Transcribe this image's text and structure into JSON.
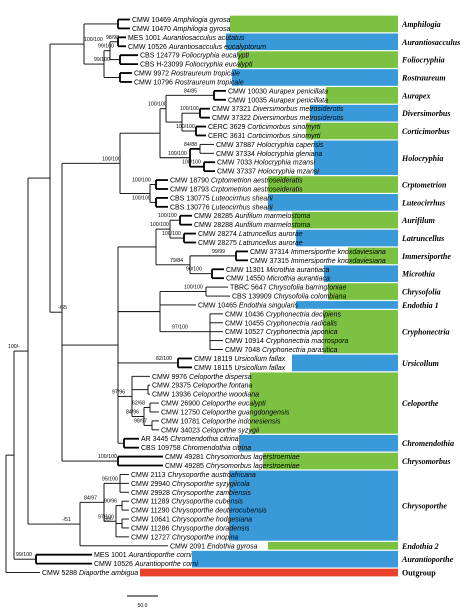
{
  "colors": {
    "green": "#7cc142",
    "blue": "#3a9ad9",
    "red": "#e8412c"
  },
  "taxa": [
    {
      "acc": "CMW 10469",
      "name": "Amphilogia gyrosa"
    },
    {
      "acc": "CMW 10470",
      "name": "Amphilogia gyrosa"
    },
    {
      "acc": "MES 1001",
      "name": "Aurantiosacculus acutatus"
    },
    {
      "acc": "CMW 10526",
      "name": "Aurantiosacculus eucalyptorum"
    },
    {
      "acc": "CBS 124779",
      "name": "Foliocryphia eucalypti"
    },
    {
      "acc": "CBS H-23099",
      "name": "Foliocryphia eucalypti"
    },
    {
      "acc": "CMW 9972",
      "name": "Rostraureum tropicale"
    },
    {
      "acc": "CMW 10796",
      "name": "Rostraureum tropicale"
    },
    {
      "acc": "CMW 10030",
      "name": "Aurapex penicillata"
    },
    {
      "acc": "CMW 10035",
      "name": "Aurapex penicillata"
    },
    {
      "acc": "CMW 37321",
      "name": "Diversimorbus metrosiderotis"
    },
    {
      "acc": "CMW 37322",
      "name": "Diversimorbus metrosiderotis"
    },
    {
      "acc": "CERC 3629",
      "name": "Corticimorbus sinomyrti"
    },
    {
      "acc": "CERC 3631",
      "name": "Corticimorbus sinomyrti"
    },
    {
      "acc": "CMW 37887",
      "name": "Holocryphia capensis"
    },
    {
      "acc": "CMW 37334",
      "name": "Holocryphia gleniana"
    },
    {
      "acc": "CMW 7033",
      "name": "Holocryphia mzansi"
    },
    {
      "acc": "CMW 37337",
      "name": "Holocryphia mzansi"
    },
    {
      "acc": "CMW 18790",
      "name": "Crptometrion aestroseideratis"
    },
    {
      "acc": "CMW 18793",
      "name": "Crptometrion aestroseideratis"
    },
    {
      "acc": "CBS 130775",
      "name": "Luteocirrhus shearii"
    },
    {
      "acc": "CBS 130776",
      "name": "Luteocirrhus shearii"
    },
    {
      "acc": "CMW 28285",
      "name": "Aurifilum marmelostoma"
    },
    {
      "acc": "CMW 28288",
      "name": "Aurifilum marmelostoma"
    },
    {
      "acc": "CMW 28274",
      "name": "Latruncellus aurorae"
    },
    {
      "acc": "CMW 28275",
      "name": "Latruncellus aurorae"
    },
    {
      "acc": "CMW 37314",
      "name": "Immersiporthe knoxdaviesiana"
    },
    {
      "acc": "CMW 37315",
      "name": "Immersiporthe knoxdaviesiana"
    },
    {
      "acc": "CMW 11301",
      "name": "Microthia aurantiaca"
    },
    {
      "acc": "CMW 14550",
      "name": "Microthia aurantiaca"
    },
    {
      "acc": "TBRC 5647",
      "name": "Chrysofolia barringtoniae"
    },
    {
      "acc": "CBS 139909",
      "name": "Chrysofolia colombiana"
    },
    {
      "acc": "CMW 10465",
      "name": "Endothia singularis"
    },
    {
      "acc": "CMW 10436",
      "name": "Cryphonectria decipiens"
    },
    {
      "acc": "CMW 10455",
      "name": "Cryphonectria radicalis"
    },
    {
      "acc": "CMW 10527",
      "name": "Cryphonectria japonica"
    },
    {
      "acc": "CMW 10914",
      "name": "Cryphonectria macrospora"
    },
    {
      "acc": "CMW 7048",
      "name": "Cryphonectria parasitica"
    },
    {
      "acc": "CMW 18119",
      "name": "Ursicollum fallax"
    },
    {
      "acc": "CMW 18115",
      "name": "Ursicollum fallax"
    },
    {
      "acc": "CMW 9976",
      "name": "Celoporthe dispersa"
    },
    {
      "acc": "CMW 29375",
      "name": "Celoporthe fontana"
    },
    {
      "acc": "CMW 13936",
      "name": "Celoporthe woodiana"
    },
    {
      "acc": "CMW 26900",
      "name": "Celoporthe eucalypti"
    },
    {
      "acc": "CMW 12750",
      "name": "Celoporthe guangdongensis"
    },
    {
      "acc": "CMW 10781",
      "name": "Celoporthe indonesiensis"
    },
    {
      "acc": "CMW 34023",
      "name": "Celoporthe syzygii"
    },
    {
      "acc": "AR 3445",
      "name": "Chromendothia citrina"
    },
    {
      "acc": "CBS 109758",
      "name": "Chromendothia citrina"
    },
    {
      "acc": "CMW 49281",
      "name": "Chrysomorbus lagerstroemiae"
    },
    {
      "acc": "CMW 49285",
      "name": "Chrysomorbus lagerstroemiae"
    },
    {
      "acc": "CMW 2113",
      "name": "Chrysoporthe austroafricana"
    },
    {
      "acc": "CMW 29940",
      "name": "Chrysoporthe syzygiicola"
    },
    {
      "acc": "CMW 29928",
      "name": "Chrysoporthe zambiensis"
    },
    {
      "acc": "CMW 11289",
      "name": "Chrysoporthe cubensis"
    },
    {
      "acc": "CMW 11290",
      "name": "Chrysoporthe deuterocubensis"
    },
    {
      "acc": "CMW 10641",
      "name": "Chrysoporthe hodgesiana"
    },
    {
      "acc": "CMW 11286",
      "name": "Chrysoporthe doradensis"
    },
    {
      "acc": "CMW 12727",
      "name": "Chrysoporthe inopina"
    },
    {
      "acc": "CMW 2091",
      "name": "Endothia gyrosa"
    },
    {
      "acc": "MES 1001",
      "name": "Aurantioporthe corni"
    },
    {
      "acc": "CMW 10526",
      "name": "Aurantioporthe corni"
    },
    {
      "acc": "CMW 5288",
      "name": "Diaporthe ambigua"
    }
  ],
  "genera": [
    {
      "label": "Amphilogia",
      "color": "green"
    },
    {
      "label": "Aurantiosacculus",
      "color": "blue"
    },
    {
      "label": "Foliocryphia",
      "color": "green"
    },
    {
      "label": "Rostraureum",
      "color": "blue"
    },
    {
      "label": "Aurapex",
      "color": "green"
    },
    {
      "label": "Diversimorbus",
      "color": "blue"
    },
    {
      "label": "Corticimorbus",
      "color": "green"
    },
    {
      "label": "Holocryphia",
      "color": "blue"
    },
    {
      "label": "Crptometrion",
      "color": "green"
    },
    {
      "label": "Luteocirrhus",
      "color": "blue"
    },
    {
      "label": "Aurifilum",
      "color": "green"
    },
    {
      "label": "Latruncellus",
      "color": "blue"
    },
    {
      "label": "Immersiporthe",
      "color": "green"
    },
    {
      "label": "Microthia",
      "color": "blue"
    },
    {
      "label": "Chrysofolia",
      "color": "green"
    },
    {
      "label": "Endothia 1",
      "color": "blue"
    },
    {
      "label": "Cryphonectria",
      "color": "green"
    },
    {
      "label": "Ursicollum",
      "color": "blue"
    },
    {
      "label": "Celoporthe",
      "color": "green"
    },
    {
      "label": "Chromendothia",
      "color": "blue"
    },
    {
      "label": "Chrysomorbus",
      "color": "green"
    },
    {
      "label": "Chrysoporthe",
      "color": "blue"
    },
    {
      "label": "Endothia 2",
      "color": "green"
    },
    {
      "label": "Aurantioporthe",
      "color": "blue"
    },
    {
      "label": "Outgroup",
      "color": "red"
    }
  ],
  "support": [
    "100/100",
    "98/98",
    "99/100",
    "99/100",
    "84/85",
    "100/100",
    "100/100",
    "100/100",
    "84/88",
    "100/100",
    "100/100",
    "-/65",
    "100/100",
    "100/100",
    "100/100",
    "100/100",
    "100/100",
    "100/100",
    "99/99",
    "79/84",
    "90/100",
    "100/100",
    "97/100",
    "82/100",
    "97/96",
    "62/68",
    "98/97",
    "84/96",
    "100/100",
    "100/-",
    "95/100",
    "84/97",
    "90/96",
    "97/100",
    "-/51",
    "59/-",
    "99/100"
  ],
  "scale_label": "50.0"
}
